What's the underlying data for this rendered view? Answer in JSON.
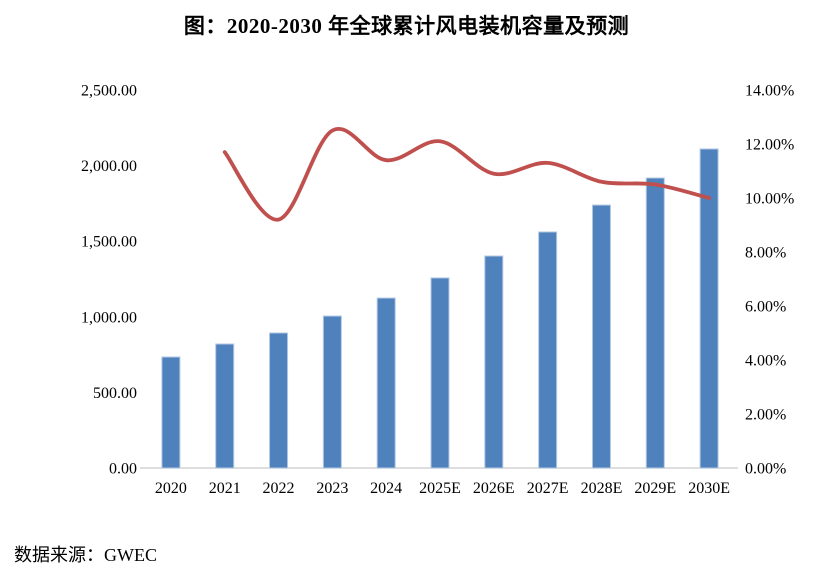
{
  "header": {
    "title": "图：2020-2030 年全球累计风电装机容量及预测"
  },
  "footer": {
    "source_label": "数据来源：GWEC"
  },
  "chart_data": {
    "type": "combo-bar-line",
    "title": "图：2020-2030 年全球累计风电装机容量及预测",
    "categories": [
      "2020",
      "2021",
      "2022",
      "2023",
      "2024",
      "2025E",
      "2026E",
      "2027E",
      "2028E",
      "2029E",
      "2030E"
    ],
    "series": [
      {
        "name": "cumulative-installed-capacity",
        "type": "bar",
        "axis": "left",
        "color": "#4f81bd",
        "border_color": "#b3c9e2",
        "values": [
          734,
          820,
          893,
          1005,
          1124,
          1257,
          1402,
          1561,
          1739,
          1918,
          2110
        ]
      },
      {
        "name": "yoy-growth-rate",
        "type": "line",
        "axis": "right",
        "color": "#c0504d",
        "start_index": 1,
        "values": [
          11.7,
          9.2,
          12.5,
          11.4,
          12.1,
          10.9,
          11.3,
          10.6,
          10.5,
          10.0
        ]
      }
    ],
    "left_axis": {
      "min": 0,
      "max": 2500,
      "tick_step": 500,
      "tick_labels": [
        "0.00",
        "500.00",
        "1,000.00",
        "1,500.00",
        "2,000.00",
        "2,500.00"
      ]
    },
    "right_axis": {
      "min": 0,
      "max": 14,
      "tick_step": 2,
      "tick_labels": [
        "0.00%",
        "2.00%",
        "4.00%",
        "6.00%",
        "8.00%",
        "10.00%",
        "12.00%",
        "14.00%"
      ]
    },
    "grid": false,
    "legend": "none",
    "axis_line_color": "#d3d3d3",
    "background": "#ffffff"
  }
}
